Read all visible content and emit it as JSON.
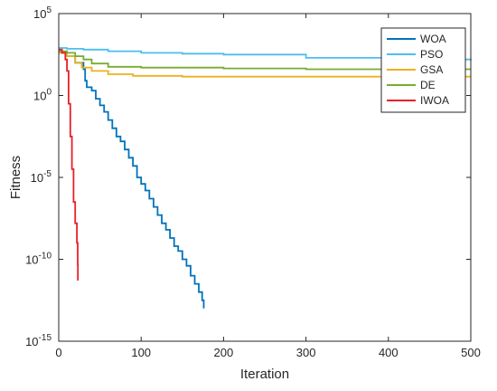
{
  "chart_data": {
    "type": "line",
    "title": "",
    "xlabel": "Iteration",
    "ylabel": "Fitness",
    "xlim": [
      0,
      500
    ],
    "ylim_log10": [
      -15,
      5
    ],
    "yscale": "log",
    "grid": false,
    "legend_position": "top-right",
    "x_ticks": [
      {
        "value": 0,
        "label": "0"
      },
      {
        "value": 100,
        "label": "100"
      },
      {
        "value": 200,
        "label": "200"
      },
      {
        "value": 300,
        "label": "300"
      },
      {
        "value": 400,
        "label": "400"
      },
      {
        "value": 500,
        "label": "500"
      }
    ],
    "y_ticks": [
      {
        "exp": 5,
        "base": "10",
        "sup": "5"
      },
      {
        "exp": 0,
        "base": "10",
        "sup": "0"
      },
      {
        "exp": -5,
        "base": "10",
        "sup": "-5"
      },
      {
        "exp": -10,
        "base": "10",
        "sup": "-10"
      },
      {
        "exp": -15,
        "base": "10",
        "sup": "-15"
      }
    ],
    "series": [
      {
        "name": "WOA",
        "color": "#0072BD",
        "step": true,
        "points": [
          [
            0,
            2.6
          ],
          [
            10,
            2.4
          ],
          [
            20,
            2
          ],
          [
            30,
            1.6
          ],
          [
            32,
            0.9
          ],
          [
            34,
            0.5
          ],
          [
            40,
            0.3
          ],
          [
            45,
            -0.2
          ],
          [
            50,
            -0.6
          ],
          [
            55,
            -1.0
          ],
          [
            60,
            -1.5
          ],
          [
            65,
            -2.0
          ],
          [
            70,
            -2.5
          ],
          [
            75,
            -2.8
          ],
          [
            80,
            -3.3
          ],
          [
            85,
            -3.8
          ],
          [
            90,
            -4.3
          ],
          [
            95,
            -5.0
          ],
          [
            100,
            -5.4
          ],
          [
            105,
            -5.8
          ],
          [
            110,
            -6.3
          ],
          [
            115,
            -6.8
          ],
          [
            120,
            -7.3
          ],
          [
            125,
            -7.8
          ],
          [
            130,
            -8.2
          ],
          [
            135,
            -8.7
          ],
          [
            140,
            -9.2
          ],
          [
            145,
            -9.5
          ],
          [
            150,
            -10.0
          ],
          [
            155,
            -10.4
          ],
          [
            160,
            -11.0
          ],
          [
            165,
            -11.5
          ],
          [
            170,
            -12.0
          ],
          [
            174,
            -12.5
          ],
          [
            176,
            -13.0
          ]
        ]
      },
      {
        "name": "PSO",
        "color": "#4DBEEE",
        "step": true,
        "points": [
          [
            0,
            2.9
          ],
          [
            10,
            2.85
          ],
          [
            30,
            2.8
          ],
          [
            60,
            2.7
          ],
          [
            100,
            2.6
          ],
          [
            150,
            2.55
          ],
          [
            200,
            2.5
          ],
          [
            300,
            2.3
          ],
          [
            400,
            2.2
          ],
          [
            500,
            2.15
          ]
        ]
      },
      {
        "name": "GSA",
        "color": "#EDB120",
        "step": true,
        "points": [
          [
            0,
            2.6
          ],
          [
            10,
            2.4
          ],
          [
            20,
            2.0
          ],
          [
            28,
            1.7
          ],
          [
            40,
            1.5
          ],
          [
            60,
            1.3
          ],
          [
            90,
            1.2
          ],
          [
            150,
            1.15
          ],
          [
            300,
            1.15
          ],
          [
            500,
            1.15
          ]
        ]
      },
      {
        "name": "DE",
        "color": "#77AC30",
        "step": true,
        "points": [
          [
            0,
            2.7
          ],
          [
            10,
            2.6
          ],
          [
            20,
            2.4
          ],
          [
            30,
            2.2
          ],
          [
            40,
            1.95
          ],
          [
            60,
            1.75
          ],
          [
            100,
            1.7
          ],
          [
            200,
            1.65
          ],
          [
            300,
            1.6
          ],
          [
            500,
            1.6
          ]
        ]
      },
      {
        "name": "IWOA",
        "color": "#E8202A",
        "step": true,
        "points": [
          [
            0,
            2.8
          ],
          [
            4,
            2.6
          ],
          [
            8,
            2.2
          ],
          [
            10,
            1.5
          ],
          [
            12,
            -0.5
          ],
          [
            14,
            -2.5
          ],
          [
            16,
            -4.5
          ],
          [
            18,
            -6.5
          ],
          [
            20,
            -7.8
          ],
          [
            22,
            -9.0
          ],
          [
            23,
            -10.3
          ],
          [
            23.2,
            -11.3
          ]
        ]
      }
    ]
  }
}
